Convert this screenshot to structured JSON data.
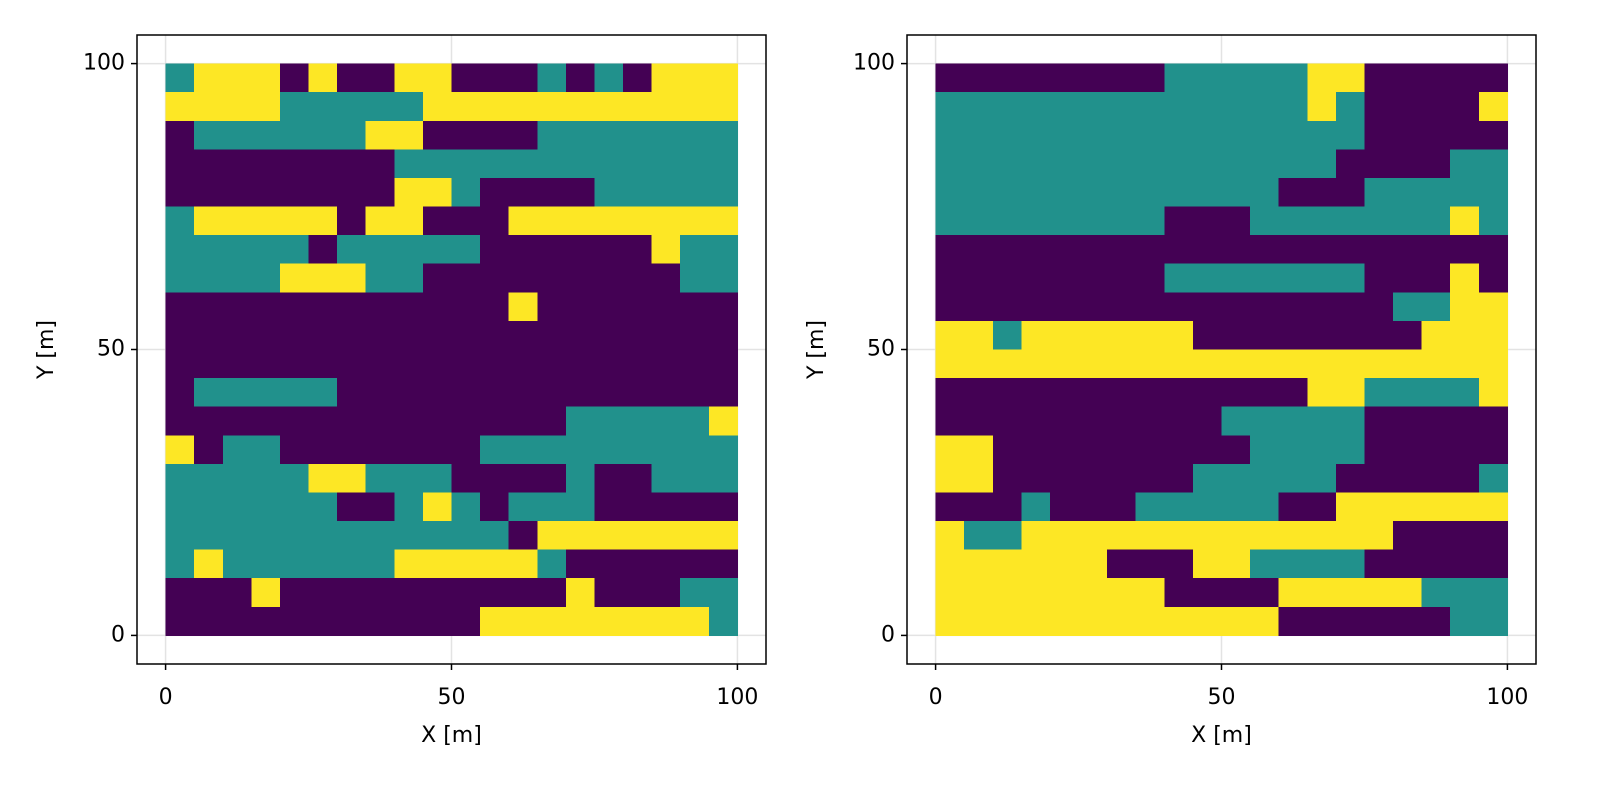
{
  "chart_data": [
    {
      "type": "heatmap",
      "xlabel": "X [m]",
      "ylabel": "Y [m]",
      "xlim": [
        -5,
        105
      ],
      "ylim": [
        -5,
        105
      ],
      "xticks": [
        0,
        50,
        100
      ],
      "yticks": [
        0,
        50,
        100
      ],
      "grid": true,
      "colors": [
        "#440154",
        "#21918c",
        "#fde725"
      ],
      "x": [
        2.5,
        7.5,
        12.5,
        17.5,
        22.5,
        27.5,
        32.5,
        37.5,
        42.5,
        47.5,
        52.5,
        57.5,
        62.5,
        67.5,
        72.5,
        77.5,
        82.5,
        87.5,
        92.5,
        97.5
      ],
      "y": [
        97.5,
        92.5,
        87.5,
        82.5,
        77.5,
        72.5,
        67.5,
        62.5,
        57.5,
        52.5,
        47.5,
        42.5,
        37.5,
        32.5,
        27.5,
        22.5,
        17.5,
        12.5,
        7.5,
        2.5
      ],
      "z": [
        [
          1,
          2,
          2,
          2,
          0,
          2,
          0,
          0,
          2,
          2,
          0,
          0,
          0,
          1,
          0,
          1,
          0,
          2,
          2,
          2
        ],
        [
          2,
          2,
          2,
          2,
          1,
          1,
          1,
          1,
          1,
          2,
          2,
          2,
          2,
          2,
          2,
          2,
          2,
          2,
          2,
          2
        ],
        [
          0,
          1,
          1,
          1,
          1,
          1,
          1,
          2,
          2,
          0,
          0,
          0,
          0,
          1,
          1,
          1,
          1,
          1,
          1,
          1
        ],
        [
          0,
          0,
          0,
          0,
          0,
          0,
          0,
          0,
          1,
          1,
          1,
          1,
          1,
          1,
          1,
          1,
          1,
          1,
          1,
          1
        ],
        [
          0,
          0,
          0,
          0,
          0,
          0,
          0,
          0,
          2,
          2,
          1,
          0,
          0,
          0,
          0,
          1,
          1,
          1,
          1,
          1
        ],
        [
          1,
          2,
          2,
          2,
          2,
          2,
          0,
          2,
          2,
          0,
          0,
          0,
          2,
          2,
          2,
          2,
          2,
          2,
          2,
          2
        ],
        [
          1,
          1,
          1,
          1,
          1,
          0,
          1,
          1,
          1,
          1,
          1,
          0,
          0,
          0,
          0,
          0,
          0,
          2,
          1,
          1
        ],
        [
          1,
          1,
          1,
          1,
          2,
          2,
          2,
          1,
          1,
          0,
          0,
          0,
          0,
          0,
          0,
          0,
          0,
          0,
          1,
          1
        ],
        [
          0,
          0,
          0,
          0,
          0,
          0,
          0,
          0,
          0,
          0,
          0,
          0,
          2,
          0,
          0,
          0,
          0,
          0,
          0,
          0
        ],
        [
          0,
          0,
          0,
          0,
          0,
          0,
          0,
          0,
          0,
          0,
          0,
          0,
          0,
          0,
          0,
          0,
          0,
          0,
          0,
          0
        ],
        [
          0,
          0,
          0,
          0,
          0,
          0,
          0,
          0,
          0,
          0,
          0,
          0,
          0,
          0,
          0,
          0,
          0,
          0,
          0,
          0
        ],
        [
          0,
          1,
          1,
          1,
          1,
          1,
          0,
          0,
          0,
          0,
          0,
          0,
          0,
          0,
          0,
          0,
          0,
          0,
          0,
          0
        ],
        [
          0,
          0,
          0,
          0,
          0,
          0,
          0,
          0,
          0,
          0,
          0,
          0,
          0,
          0,
          1,
          1,
          1,
          1,
          1,
          2
        ],
        [
          2,
          0,
          1,
          1,
          0,
          0,
          0,
          0,
          0,
          0,
          0,
          1,
          1,
          1,
          1,
          1,
          1,
          1,
          1,
          1
        ],
        [
          1,
          1,
          1,
          1,
          1,
          2,
          2,
          1,
          1,
          1,
          0,
          0,
          0,
          0,
          1,
          0,
          0,
          1,
          1,
          1
        ],
        [
          1,
          1,
          1,
          1,
          1,
          1,
          0,
          0,
          1,
          2,
          1,
          0,
          1,
          1,
          1,
          0,
          0,
          0,
          0,
          0
        ],
        [
          1,
          1,
          1,
          1,
          1,
          1,
          1,
          1,
          1,
          1,
          1,
          1,
          0,
          2,
          2,
          2,
          2,
          2,
          2,
          2
        ],
        [
          1,
          2,
          1,
          1,
          1,
          1,
          1,
          1,
          2,
          2,
          2,
          2,
          2,
          1,
          0,
          0,
          0,
          0,
          0,
          0
        ],
        [
          0,
          0,
          0,
          2,
          0,
          0,
          0,
          0,
          0,
          0,
          0,
          0,
          0,
          0,
          2,
          0,
          0,
          0,
          1,
          1
        ],
        [
          0,
          0,
          0,
          0,
          0,
          0,
          0,
          0,
          0,
          0,
          0,
          2,
          2,
          2,
          2,
          2,
          2,
          2,
          2,
          1
        ]
      ]
    },
    {
      "type": "heatmap",
      "xlabel": "X [m]",
      "ylabel": "Y [m]",
      "xlim": [
        -5,
        105
      ],
      "ylim": [
        -5,
        105
      ],
      "xticks": [
        0,
        50,
        100
      ],
      "yticks": [
        0,
        50,
        100
      ],
      "grid": true,
      "colors": [
        "#440154",
        "#21918c",
        "#fde725"
      ],
      "x": [
        2.5,
        7.5,
        12.5,
        17.5,
        22.5,
        27.5,
        32.5,
        37.5,
        42.5,
        47.5,
        52.5,
        57.5,
        62.5,
        67.5,
        72.5,
        77.5,
        82.5,
        87.5,
        92.5,
        97.5
      ],
      "y": [
        97.5,
        92.5,
        87.5,
        82.5,
        77.5,
        72.5,
        67.5,
        62.5,
        57.5,
        52.5,
        47.5,
        42.5,
        37.5,
        32.5,
        27.5,
        22.5,
        17.5,
        12.5,
        7.5,
        2.5
      ],
      "z": [
        [
          0,
          0,
          0,
          0,
          0,
          0,
          0,
          0,
          1,
          1,
          1,
          1,
          1,
          2,
          2,
          0,
          0,
          0,
          0,
          0
        ],
        [
          1,
          1,
          1,
          1,
          1,
          1,
          1,
          1,
          1,
          1,
          1,
          1,
          1,
          2,
          1,
          0,
          0,
          0,
          0,
          2
        ],
        [
          1,
          1,
          1,
          1,
          1,
          1,
          1,
          1,
          1,
          1,
          1,
          1,
          1,
          1,
          1,
          0,
          0,
          0,
          0,
          0
        ],
        [
          1,
          1,
          1,
          1,
          1,
          1,
          1,
          1,
          1,
          1,
          1,
          1,
          1,
          1,
          0,
          0,
          0,
          0,
          1,
          1
        ],
        [
          1,
          1,
          1,
          1,
          1,
          1,
          1,
          1,
          1,
          1,
          1,
          1,
          0,
          0,
          0,
          1,
          1,
          1,
          1,
          1
        ],
        [
          1,
          1,
          1,
          1,
          1,
          1,
          1,
          1,
          0,
          0,
          0,
          1,
          1,
          1,
          1,
          1,
          1,
          1,
          2,
          1
        ],
        [
          0,
          0,
          0,
          0,
          0,
          0,
          0,
          0,
          0,
          0,
          0,
          0,
          0,
          0,
          0,
          0,
          0,
          0,
          0,
          0
        ],
        [
          0,
          0,
          0,
          0,
          0,
          0,
          0,
          0,
          1,
          1,
          1,
          1,
          1,
          1,
          1,
          0,
          0,
          0,
          2,
          0
        ],
        [
          0,
          0,
          0,
          0,
          0,
          0,
          0,
          0,
          0,
          0,
          0,
          0,
          0,
          0,
          0,
          0,
          1,
          1,
          2,
          2
        ],
        [
          2,
          2,
          1,
          2,
          2,
          2,
          2,
          2,
          2,
          0,
          0,
          0,
          0,
          0,
          0,
          0,
          0,
          2,
          2,
          2
        ],
        [
          2,
          2,
          2,
          2,
          2,
          2,
          2,
          2,
          2,
          2,
          2,
          2,
          2,
          2,
          2,
          2,
          2,
          2,
          2,
          2
        ],
        [
          0,
          0,
          0,
          0,
          0,
          0,
          0,
          0,
          0,
          0,
          0,
          0,
          0,
          2,
          2,
          1,
          1,
          1,
          1,
          2
        ],
        [
          0,
          0,
          0,
          0,
          0,
          0,
          0,
          0,
          0,
          0,
          1,
          1,
          1,
          1,
          1,
          0,
          0,
          0,
          0,
          0
        ],
        [
          2,
          2,
          0,
          0,
          0,
          0,
          0,
          0,
          0,
          0,
          0,
          1,
          1,
          1,
          1,
          0,
          0,
          0,
          0,
          0
        ],
        [
          2,
          2,
          0,
          0,
          0,
          0,
          0,
          0,
          0,
          1,
          1,
          1,
          1,
          1,
          0,
          0,
          0,
          0,
          0,
          1
        ],
        [
          0,
          0,
          0,
          1,
          0,
          0,
          0,
          1,
          1,
          1,
          1,
          1,
          0,
          0,
          2,
          2,
          2,
          2,
          2,
          2
        ],
        [
          2,
          1,
          1,
          2,
          2,
          2,
          2,
          2,
          2,
          2,
          2,
          2,
          2,
          2,
          2,
          2,
          0,
          0,
          0,
          0
        ],
        [
          2,
          2,
          2,
          2,
          2,
          2,
          0,
          0,
          0,
          2,
          2,
          1,
          1,
          1,
          1,
          0,
          0,
          0,
          0,
          0
        ],
        [
          2,
          2,
          2,
          2,
          2,
          2,
          2,
          2,
          0,
          0,
          0,
          0,
          2,
          2,
          2,
          2,
          2,
          1,
          1,
          1
        ],
        [
          2,
          2,
          2,
          2,
          2,
          2,
          2,
          2,
          2,
          2,
          2,
          2,
          0,
          0,
          0,
          0,
          0,
          0,
          1,
          1
        ]
      ]
    }
  ]
}
